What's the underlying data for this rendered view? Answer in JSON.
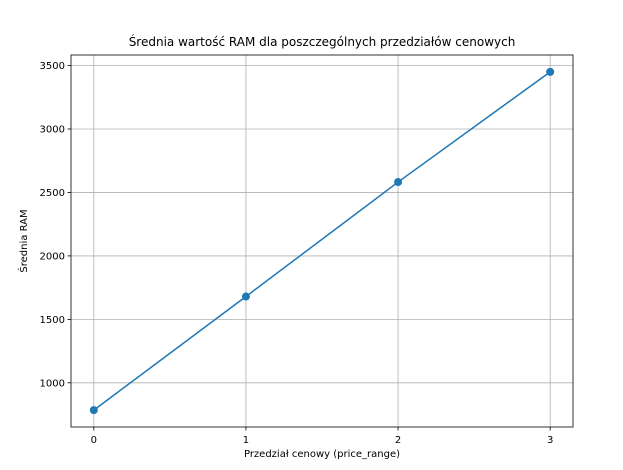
{
  "chart_data": {
    "type": "line",
    "title": "Średnia wartość RAM dla poszczególnych przedziałów cenowych",
    "xlabel": "Przedział cenowy (price_range)",
    "ylabel": "Średnia RAM",
    "x": [
      0,
      1,
      2,
      3
    ],
    "xticks": [
      "0",
      "1",
      "2",
      "3"
    ],
    "yticks": [
      "1000",
      "1500",
      "2000",
      "2500",
      "3000",
      "3500"
    ],
    "series": [
      {
        "values": [
          785,
          1680,
          2582,
          3450
        ],
        "color": "#1f77b4",
        "marker": "circle"
      }
    ],
    "xlim": [
      -0.15,
      3.15
    ],
    "ylim": [
      652,
      3583
    ],
    "grid": true
  }
}
